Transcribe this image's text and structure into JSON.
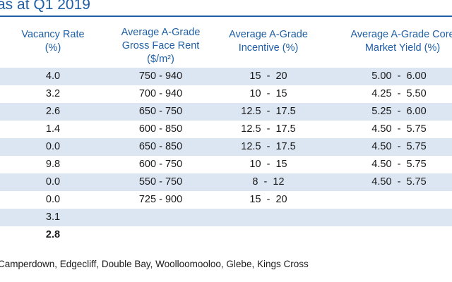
{
  "title": "as at Q1 2019",
  "columns": {
    "vacancy": [
      "Vacancy Rate",
      "(%)"
    ],
    "rent": [
      "Average A-Grade",
      "Gross Face Rent",
      "($/m²)"
    ],
    "incentive": [
      "Average A-Grade",
      "Incentive (%)"
    ],
    "yield": [
      "Average A-Grade Core",
      "Market Yield (%)"
    ]
  },
  "rows": [
    {
      "vacancy": "4.0",
      "rent": "750 - 940",
      "incentive": "15  -  20",
      "yield": "5.00  -  6.00"
    },
    {
      "vacancy": "3.2",
      "rent": "700 - 940",
      "incentive": "10  -  15",
      "yield": "4.25  -  5.50"
    },
    {
      "vacancy": "2.6",
      "rent": "650 - 750",
      "incentive": "12.5  -  17.5",
      "yield": "5.25  -  6.00"
    },
    {
      "vacancy": "1.4",
      "rent": "600 - 850",
      "incentive": "12.5  -  17.5",
      "yield": "4.50  -  5.75"
    },
    {
      "vacancy": "0.0",
      "rent": "650 - 850",
      "incentive": "12.5  -  17.5",
      "yield": "4.50  -  5.75"
    },
    {
      "vacancy": "9.8",
      "rent": "600 - 750",
      "incentive": "10  -  15",
      "yield": "4.50  -  5.75"
    },
    {
      "vacancy": "0.0",
      "rent": "550 - 750",
      "incentive": "8  -  12",
      "yield": "4.50  -  5.75"
    },
    {
      "vacancy": "0.0",
      "rent": "725 - 900",
      "incentive": "15  -  20",
      "yield": ""
    },
    {
      "vacancy": "3.1",
      "rent": "",
      "incentive": "",
      "yield": ""
    },
    {
      "vacancy": "2.8",
      "rent": "",
      "incentive": "",
      "yield": ""
    }
  ],
  "footnote": "Camperdown, Edgecliff, Double Bay, Woolloomooloo, Glebe, Kings Cross"
}
